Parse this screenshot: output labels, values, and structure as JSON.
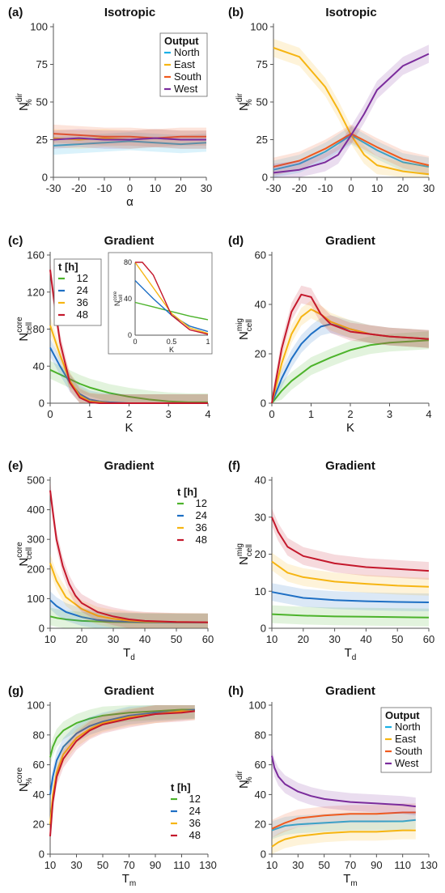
{
  "colors": {
    "north": "#1ab0e6",
    "east": "#f6b512",
    "south": "#f05a1e",
    "west": "#7b2c9c",
    "t12": "#4cb32b",
    "t24": "#1e6fc4",
    "t36": "#f6b512",
    "t48": "#c4182c"
  },
  "chart_data": [
    {
      "id": "a",
      "panel_label": "(a)",
      "type": "line",
      "title": "Isotropic",
      "ylabel": "N",
      "ylabel_sup": "dir",
      "ylabel_sub": "%",
      "xlabel": "α",
      "xlim": [
        -30,
        30
      ],
      "ylim": [
        0,
        100
      ],
      "xticks": [
        -30,
        -20,
        -10,
        0,
        10,
        20,
        30
      ],
      "yticks": [
        0,
        25,
        50,
        75,
        100
      ],
      "legend": {
        "title": "Output",
        "placement": "top-right"
      },
      "series": [
        {
          "name": "North",
          "color_key": "north",
          "x": [
            -30,
            -20,
            -10,
            0,
            10,
            20,
            30
          ],
          "y": [
            21,
            22,
            23,
            24,
            23,
            22,
            23
          ]
        },
        {
          "name": "East",
          "color_key": "east",
          "x": [
            -30,
            -20,
            -10,
            0,
            10,
            20,
            30
          ],
          "y": [
            26,
            25,
            26,
            25,
            26,
            25,
            25
          ]
        },
        {
          "name": "South",
          "color_key": "south",
          "x": [
            -30,
            -20,
            -10,
            0,
            10,
            20,
            30
          ],
          "y": [
            29,
            28,
            27,
            27,
            26,
            27,
            27
          ]
        },
        {
          "name": "West",
          "color_key": "west",
          "x": [
            -30,
            -20,
            -10,
            0,
            10,
            20,
            30
          ],
          "y": [
            25,
            26,
            25,
            25,
            26,
            25,
            25
          ]
        }
      ]
    },
    {
      "id": "b",
      "panel_label": "(b)",
      "type": "line",
      "title": "Isotropic",
      "ylabel": "N",
      "ylabel_sup": "dir",
      "ylabel_sub": "%",
      "xlabel": "",
      "xlim": [
        -30,
        30
      ],
      "ylim": [
        0,
        100
      ],
      "xticks": [
        -30,
        -20,
        -10,
        0,
        10,
        20,
        30
      ],
      "yticks": [
        0,
        25,
        50,
        75,
        100
      ],
      "series": [
        {
          "name": "North",
          "color_key": "north",
          "x": [
            -30,
            -20,
            -10,
            0,
            10,
            20,
            30
          ],
          "y": [
            5,
            9,
            17,
            28,
            18,
            10,
            7
          ]
        },
        {
          "name": "East",
          "color_key": "east",
          "x": [
            -30,
            -20,
            -10,
            -5,
            0,
            5,
            10,
            20,
            30
          ],
          "y": [
            86,
            80,
            60,
            45,
            28,
            15,
            8,
            4,
            2
          ]
        },
        {
          "name": "South",
          "color_key": "south",
          "x": [
            -30,
            -20,
            -10,
            0,
            10,
            20,
            30
          ],
          "y": [
            7,
            11,
            19,
            29,
            20,
            12,
            8
          ]
        },
        {
          "name": "West",
          "color_key": "west",
          "x": [
            -30,
            -20,
            -10,
            -5,
            0,
            5,
            10,
            20,
            30
          ],
          "y": [
            3,
            5,
            10,
            15,
            28,
            42,
            58,
            74,
            82
          ]
        }
      ]
    },
    {
      "id": "c",
      "panel_label": "(c)",
      "type": "line",
      "title": "Gradient",
      "ylabel": "N",
      "ylabel_sup": "core",
      "ylabel_sub": "cell",
      "xlabel": "K",
      "xlim": [
        0,
        4
      ],
      "ylim": [
        0,
        160
      ],
      "xticks": [
        0,
        1,
        2,
        3,
        4
      ],
      "yticks": [
        0,
        40,
        80,
        120,
        160
      ],
      "legend": {
        "title": "t [h]",
        "placement": "top-left"
      },
      "series": [
        {
          "name": "12",
          "color_key": "t12",
          "x": [
            0,
            0.25,
            0.5,
            0.75,
            1,
            1.5,
            2,
            2.5,
            3,
            3.5,
            4
          ],
          "y": [
            36,
            31,
            26,
            21,
            17,
            11,
            7,
            4,
            2,
            1,
            1
          ]
        },
        {
          "name": "24",
          "color_key": "t24",
          "x": [
            0,
            0.25,
            0.5,
            0.75,
            1,
            1.25,
            1.5,
            2,
            4
          ],
          "y": [
            60,
            40,
            22,
            10,
            4,
            2,
            1,
            0,
            0
          ]
        },
        {
          "name": "36",
          "color_key": "t36",
          "x": [
            0,
            0.25,
            0.5,
            0.75,
            1,
            1.25,
            1.5,
            2,
            4
          ],
          "y": [
            84,
            52,
            24,
            8,
            2,
            1,
            0,
            0,
            0
          ]
        },
        {
          "name": "48",
          "color_key": "t48",
          "x": [
            0,
            0.1,
            0.25,
            0.5,
            0.75,
            1,
            1.25,
            1.5,
            4
          ],
          "y": [
            144,
            110,
            66,
            22,
            6,
            1,
            0,
            0,
            0
          ]
        }
      ],
      "inset": {
        "xlim": [
          0,
          1
        ],
        "ylim": [
          0,
          80
        ],
        "xticks": [
          0,
          0.5,
          1
        ],
        "xticklabels": [
          "0",
          "0.5",
          "1"
        ],
        "yticks": [
          0,
          40,
          80
        ],
        "xlabel": "K",
        "ylabel": "N",
        "ylabel_sup": "core",
        "ylabel_sub": "cell"
      }
    },
    {
      "id": "d",
      "panel_label": "(d)",
      "type": "line",
      "title": "Gradient",
      "ylabel": "N",
      "ylabel_sup": "mig",
      "ylabel_sub": "cell",
      "xlabel": "K",
      "xlim": [
        0,
        4
      ],
      "ylim": [
        0,
        60
      ],
      "xticks": [
        0,
        1,
        2,
        3,
        4
      ],
      "yticks": [
        0,
        20,
        40,
        60
      ],
      "series": [
        {
          "name": "12",
          "color_key": "t12",
          "x": [
            0,
            0.25,
            0.5,
            0.75,
            1,
            1.5,
            2,
            2.5,
            3,
            3.5,
            4
          ],
          "y": [
            0,
            5,
            9,
            12,
            15,
            18.5,
            21.5,
            23.5,
            24.5,
            25,
            25.5
          ]
        },
        {
          "name": "24",
          "color_key": "t24",
          "x": [
            0,
            0.25,
            0.5,
            0.75,
            1,
            1.25,
            1.5,
            2,
            2.5,
            3,
            4
          ],
          "y": [
            0,
            10,
            18,
            24,
            28,
            31,
            32,
            30,
            28,
            27,
            26
          ]
        },
        {
          "name": "36",
          "color_key": "t36",
          "x": [
            0,
            0.25,
            0.5,
            0.75,
            1,
            1.25,
            1.5,
            2,
            2.5,
            3,
            4
          ],
          "y": [
            0,
            16,
            28,
            35,
            38,
            36,
            33,
            30,
            28,
            27,
            26
          ]
        },
        {
          "name": "48",
          "color_key": "t48",
          "x": [
            0,
            0.25,
            0.5,
            0.75,
            1,
            1.25,
            1.5,
            2,
            2.5,
            3,
            4
          ],
          "y": [
            0,
            22,
            37,
            44,
            43,
            36,
            32,
            29,
            28,
            27,
            26
          ]
        }
      ]
    },
    {
      "id": "e",
      "panel_label": "(e)",
      "type": "line",
      "title": "Gradient",
      "ylabel": "N",
      "ylabel_sup": "core",
      "ylabel_sub": "cell",
      "xlabel": "T",
      "xlabel_sub": "d",
      "xlim": [
        10,
        60
      ],
      "ylim": [
        0,
        500
      ],
      "xticks": [
        10,
        20,
        30,
        40,
        50,
        60
      ],
      "yticks": [
        0,
        100,
        200,
        300,
        400,
        500
      ],
      "legend": {
        "title": "t [h]",
        "placement": "top-right"
      },
      "series": [
        {
          "name": "12",
          "color_key": "t12",
          "x": [
            10,
            12,
            15,
            20,
            30,
            40,
            50,
            60
          ],
          "y": [
            40,
            35,
            30,
            25,
            21,
            20,
            20,
            20
          ]
        },
        {
          "name": "24",
          "color_key": "t24",
          "x": [
            10,
            12,
            15,
            20,
            25,
            30,
            40,
            50,
            60
          ],
          "y": [
            95,
            75,
            55,
            38,
            28,
            24,
            21,
            20,
            20
          ]
        },
        {
          "name": "36",
          "color_key": "t36",
          "x": [
            10,
            12,
            15,
            20,
            25,
            30,
            35,
            40,
            50,
            60
          ],
          "y": [
            220,
            160,
            105,
            65,
            42,
            32,
            26,
            23,
            21,
            20
          ]
        },
        {
          "name": "48",
          "color_key": "t48",
          "x": [
            10,
            11,
            12,
            14,
            16,
            18,
            20,
            25,
            30,
            35,
            40,
            50,
            60
          ],
          "y": [
            465,
            380,
            300,
            210,
            150,
            110,
            85,
            55,
            40,
            30,
            25,
            21,
            20
          ]
        }
      ]
    },
    {
      "id": "f",
      "panel_label": "(f)",
      "type": "line",
      "title": "Gradient",
      "ylabel": "N",
      "ylabel_sup": "mig",
      "ylabel_sub": "cell",
      "xlabel": "T",
      "xlabel_sub": "d",
      "xlim": [
        10,
        60
      ],
      "ylim": [
        0,
        40
      ],
      "xticks": [
        10,
        20,
        30,
        40,
        50,
        60
      ],
      "yticks": [
        0,
        10,
        20,
        30,
        40
      ],
      "series": [
        {
          "name": "12",
          "color_key": "t12",
          "x": [
            10,
            20,
            30,
            40,
            50,
            60
          ],
          "y": [
            3.8,
            3.4,
            3.2,
            3.1,
            3,
            2.9
          ]
        },
        {
          "name": "24",
          "color_key": "t24",
          "x": [
            10,
            20,
            30,
            40,
            50,
            60
          ],
          "y": [
            9.8,
            8.2,
            7.6,
            7.3,
            7.1,
            7
          ]
        },
        {
          "name": "36",
          "color_key": "t36",
          "x": [
            10,
            15,
            20,
            30,
            40,
            50,
            60
          ],
          "y": [
            18,
            15,
            13.8,
            12.6,
            12,
            11.5,
            11.2
          ]
        },
        {
          "name": "48",
          "color_key": "t48",
          "x": [
            10,
            12,
            15,
            20,
            25,
            30,
            40,
            50,
            60
          ],
          "y": [
            30,
            26,
            22,
            19.5,
            18.5,
            17.5,
            16.5,
            16,
            15.5
          ]
        }
      ]
    },
    {
      "id": "g",
      "panel_label": "(g)",
      "type": "line",
      "title": "Gradient",
      "ylabel": "N",
      "ylabel_sup": "core",
      "ylabel_sub": "%",
      "xlabel": "T",
      "xlabel_sub": "m",
      "xlim": [
        10,
        130
      ],
      "ylim": [
        0,
        100
      ],
      "xticks": [
        10,
        30,
        50,
        70,
        90,
        110,
        130
      ],
      "yticks": [
        0,
        20,
        40,
        60,
        80,
        100
      ],
      "legend": {
        "title": "t [h]",
        "placement": "bottom-right"
      },
      "series": [
        {
          "name": "12",
          "color_key": "t12",
          "x": [
            10,
            12,
            15,
            20,
            30,
            40,
            50,
            70,
            90,
            110,
            120
          ],
          "y": [
            65,
            72,
            78,
            83,
            88,
            91,
            93,
            95,
            96,
            97,
            97
          ]
        },
        {
          "name": "24",
          "color_key": "t24",
          "x": [
            10,
            12,
            15,
            20,
            30,
            40,
            50,
            70,
            90,
            110,
            120
          ],
          "y": [
            40,
            52,
            63,
            72,
            81,
            86,
            89,
            93,
            95,
            96,
            97
          ]
        },
        {
          "name": "36",
          "color_key": "t36",
          "x": [
            10,
            12,
            15,
            20,
            30,
            40,
            50,
            70,
            90,
            110,
            120
          ],
          "y": [
            20,
            40,
            55,
            67,
            78,
            84,
            88,
            92,
            94,
            96,
            96
          ]
        },
        {
          "name": "48",
          "color_key": "t48",
          "x": [
            10,
            12,
            15,
            20,
            30,
            40,
            50,
            70,
            90,
            110,
            120
          ],
          "y": [
            12,
            35,
            52,
            64,
            76,
            83,
            87,
            91,
            94,
            95,
            96
          ]
        }
      ]
    },
    {
      "id": "h",
      "panel_label": "(h)",
      "type": "line",
      "title": "Gradient",
      "ylabel": "N",
      "ylabel_sup": "dir",
      "ylabel_sub": "%",
      "xlabel": "T",
      "xlabel_sub": "m",
      "xlim": [
        10,
        130
      ],
      "ylim": [
        0,
        100
      ],
      "xticks": [
        10,
        30,
        50,
        70,
        90,
        110,
        130
      ],
      "yticks": [
        0,
        20,
        40,
        60,
        80,
        100
      ],
      "legend": {
        "title": "Output",
        "placement": "top-right"
      },
      "series": [
        {
          "name": "North",
          "color_key": "north",
          "x": [
            10,
            20,
            30,
            50,
            70,
            90,
            110,
            120
          ],
          "y": [
            16,
            19,
            20,
            21,
            22,
            22,
            22,
            23
          ]
        },
        {
          "name": "East",
          "color_key": "east",
          "x": [
            10,
            15,
            20,
            30,
            50,
            70,
            90,
            110,
            120
          ],
          "y": [
            5,
            8,
            10,
            12,
            14,
            15,
            15,
            16,
            16
          ]
        },
        {
          "name": "South",
          "color_key": "south",
          "x": [
            10,
            20,
            30,
            50,
            70,
            90,
            110,
            120
          ],
          "y": [
            17,
            21,
            24,
            26,
            27,
            27,
            28,
            28
          ]
        },
        {
          "name": "West",
          "color_key": "west",
          "x": [
            10,
            12,
            15,
            20,
            30,
            40,
            50,
            70,
            90,
            110,
            120
          ],
          "y": [
            66,
            58,
            52,
            47,
            42,
            39,
            37,
            35,
            34,
            33,
            32
          ]
        }
      ]
    }
  ]
}
